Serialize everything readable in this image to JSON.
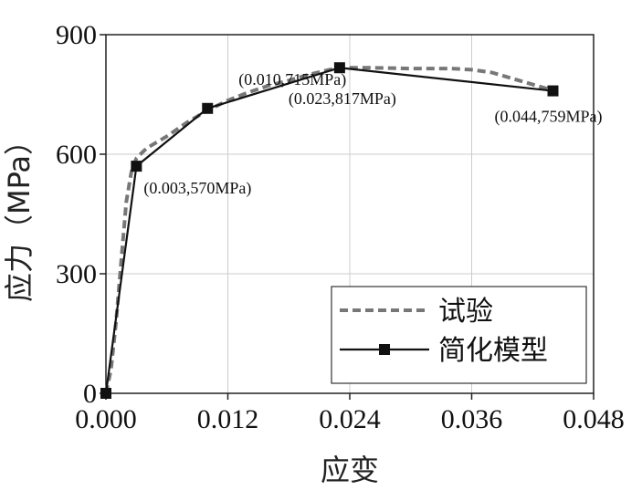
{
  "chart_data": {
    "type": "line",
    "title": "",
    "xlabel": "应变",
    "ylabel": "应力（MPa）",
    "xlim": [
      0,
      0.048
    ],
    "ylim": [
      0,
      900
    ],
    "x_ticks": [
      "0.000",
      "0.012",
      "0.024",
      "0.036",
      "0.048"
    ],
    "y_ticks": [
      "0",
      "300",
      "600",
      "900"
    ],
    "grid": true,
    "legend_position": "bottom-right",
    "series": [
      {
        "name": "试验",
        "style": "dashed",
        "color": "#777777",
        "x": [
          0.0,
          0.0005,
          0.001,
          0.0015,
          0.002,
          0.0025,
          0.003,
          0.004,
          0.005,
          0.006,
          0.008,
          0.01,
          0.012,
          0.014,
          0.016,
          0.018,
          0.02,
          0.022,
          0.024,
          0.026,
          0.028,
          0.03,
          0.032,
          0.034,
          0.036,
          0.038,
          0.04,
          0.042,
          0.044
        ],
        "y": [
          0,
          60,
          180,
          330,
          480,
          555,
          590,
          615,
          630,
          645,
          680,
          710,
          735,
          755,
          772,
          785,
          800,
          812,
          817,
          817,
          816,
          815,
          815,
          815,
          812,
          805,
          790,
          775,
          760
        ]
      },
      {
        "name": "简化模型",
        "style": "solid-square",
        "color": "#111111",
        "x": [
          0.0,
          0.003,
          0.01,
          0.023,
          0.044
        ],
        "y": [
          0,
          570,
          715,
          817,
          759
        ]
      }
    ],
    "annotations": [
      {
        "text": "(0.003,570MPa)",
        "x": 0.003,
        "y": 570
      },
      {
        "text": "(0.010,715MPa)",
        "x": 0.01,
        "y": 715
      },
      {
        "text": "(0.023,817MPa)",
        "x": 0.023,
        "y": 817
      },
      {
        "text": "(0.044,759MPa)",
        "x": 0.044,
        "y": 759
      }
    ]
  }
}
